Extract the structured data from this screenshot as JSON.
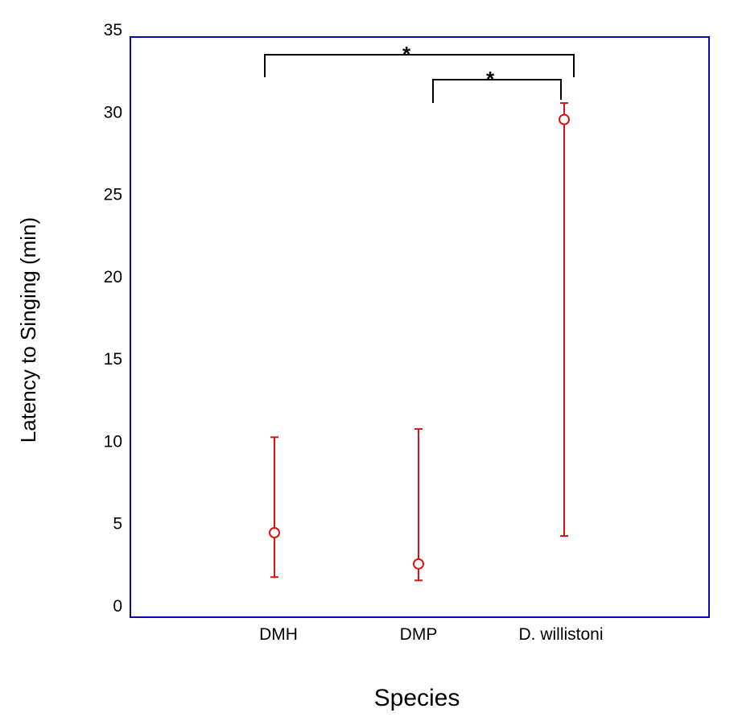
{
  "chart_data": {
    "type": "scatter",
    "subtype": "mean-with-error-bars",
    "title": "",
    "xlabel": "Species",
    "ylabel": "Latency to Singing (min)",
    "ylim": [
      0,
      35
    ],
    "yticks": [
      0,
      5,
      10,
      15,
      20,
      25,
      30,
      35
    ],
    "ytick_labels": [
      "0",
      "5",
      "10",
      "15",
      "20",
      "25",
      "30",
      "35"
    ],
    "categories": [
      "DMH",
      "DMP",
      "D. willistoni"
    ],
    "series": [
      {
        "points": [
          {
            "category": "DMH",
            "value": 4.4,
            "lower": 1.7,
            "upper": 10.2
          },
          {
            "category": "DMP",
            "value": 2.5,
            "lower": 1.5,
            "upper": 10.7
          },
          {
            "category": "D. willistoni",
            "value": 29.5,
            "lower": 4.2,
            "upper": 30.5
          }
        ]
      }
    ],
    "significance": [
      {
        "from": "DMH",
        "to": "D. willistoni",
        "label": "*"
      },
      {
        "from": "DMP",
        "to": "D. willistoni",
        "label": "*"
      }
    ],
    "grid": false,
    "colors": {
      "series": "#dd1111",
      "frame": "#0a0aa8",
      "bracket": "#000000"
    }
  }
}
